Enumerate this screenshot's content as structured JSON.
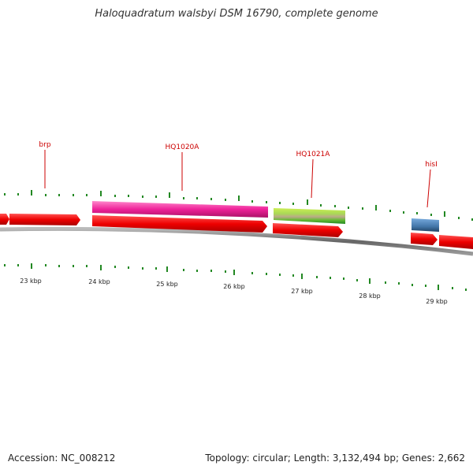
{
  "title": "Haloquadratum walsbyi DSM 16790, complete genome",
  "footer": {
    "accession": "Accession: NC_008212",
    "summary": "Topology: circular; Length: 3,132,494 bp; Genes: 2,662"
  },
  "scale_labels": [
    "23 kbp",
    "24 kbp",
    "25 kbp",
    "26 kbp",
    "27 kbp",
    "28 kbp",
    "29 kbp"
  ],
  "gene_labels": [
    "brp",
    "HQ1020A",
    "HQ1021A",
    "hisI"
  ],
  "colors": {
    "cds": "#ee0000",
    "magenta_feature": "#ee2299",
    "green_feature": "#88cc33",
    "blue_feature": "#4477aa",
    "backbone": "#888888",
    "tick": "#228822",
    "label": "#cc0000"
  }
}
